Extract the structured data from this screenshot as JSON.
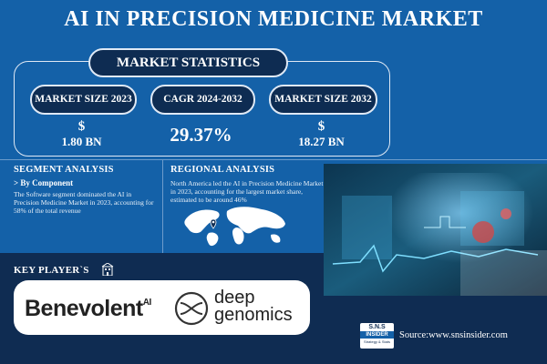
{
  "title": "AI IN PRECISION MEDICINE MARKET",
  "market_statistics": {
    "heading": "MARKET STATISTICS",
    "items": [
      {
        "label": "MARKET SIZE 2023",
        "currency": "$",
        "value": "1.80 BN"
      },
      {
        "label": "CAGR 2024-2032",
        "currency": "",
        "value": "29.37%"
      },
      {
        "label": "MARKET SIZE 2032",
        "currency": "$",
        "value": "18.27 BN"
      }
    ]
  },
  "segment_analysis": {
    "heading": "SEGMENT ANALYSIS",
    "subheading": "> By Component",
    "text": "The Software segment dominated the AI in Precision Medicine Market in 2023, accounting for 58% of the total revenue"
  },
  "regional_analysis": {
    "heading": "REGIONAL ANALYSIS",
    "text": "North America led the AI in Precision Medicine Market in 2023, accounting for the largest market share, estimated to be around 46%"
  },
  "key_players": {
    "heading": "KEY PLAYER`S",
    "logos": [
      "Benevolent",
      "AI",
      "deep",
      "genomics"
    ]
  },
  "footer": {
    "source": "Source:www.snsinsider.com",
    "brand_line1": "S.N.S",
    "brand_line2": "INSIDER",
    "brand_line3": "Strategy & Stats"
  },
  "colors": {
    "background": "#1461a8",
    "dark_navy": "#0f2c52",
    "accent_line": "#6d9ccb"
  }
}
